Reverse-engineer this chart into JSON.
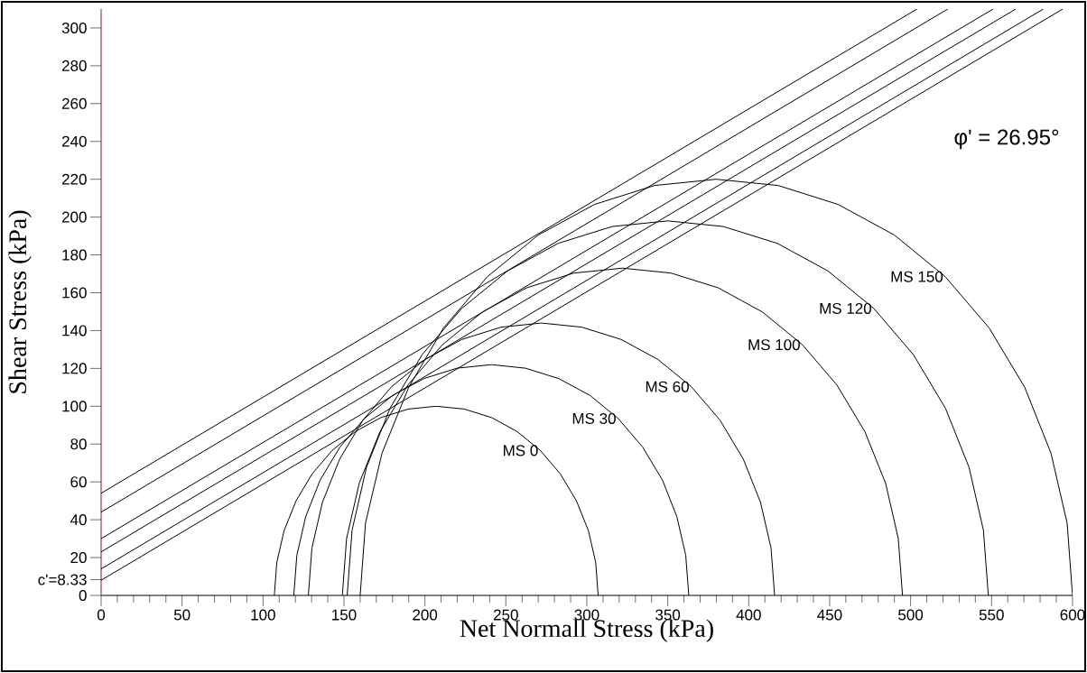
{
  "chart_data": {
    "type": "line",
    "xlabel": "Net Normall Stress (kPa)",
    "ylabel": "Shear Stress (kPa)",
    "annotations": [
      "φ' = 26.95°"
    ],
    "xlim": [
      0,
      600
    ],
    "ylim": [
      0,
      310
    ],
    "xticks": [
      0,
      50,
      100,
      150,
      200,
      250,
      300,
      350,
      400,
      450,
      500,
      550,
      600
    ],
    "yticks": [
      0,
      {
        "value": 8.33,
        "label": "c'=8.33"
      },
      20,
      40,
      60,
      80,
      100,
      120,
      140,
      160,
      180,
      200,
      220,
      240,
      260,
      280,
      300
    ],
    "series": [
      {
        "name": "MS 0",
        "color": "#000000",
        "x": [
          307,
          305.5,
          301,
          293.6,
          283.6,
          271.3,
          257,
          241.2,
          224.4,
          207,
          189.6,
          172.8,
          157,
          142.7,
          130.4,
          120.4,
          113,
          108.5,
          107
        ],
        "values": [
          0,
          17.4,
          34.2,
          50,
          64.3,
          76.6,
          86.6,
          94,
          98.5,
          100,
          98.5,
          94,
          86.6,
          76.6,
          64.3,
          50,
          34.2,
          17.4,
          0
        ]
      },
      {
        "name": "MS 30",
        "color": "#000000",
        "x": [
          363,
          361.1,
          355.6,
          346.7,
          334.5,
          319.4,
          302,
          282.7,
          262.2,
          241,
          219.8,
          199.3,
          180,
          162.6,
          147.5,
          135.3,
          126.4,
          120.9,
          119
        ],
        "values": [
          0,
          21.2,
          41.7,
          61,
          78.4,
          93.5,
          105.7,
          114.6,
          120.1,
          122,
          120.1,
          114.6,
          105.7,
          93.5,
          78.4,
          61,
          41.7,
          21.2,
          0
        ]
      },
      {
        "name": "MS 60",
        "color": "#000000",
        "x": [
          416,
          413.8,
          407.3,
          396.7,
          382.3,
          364.6,
          344,
          321.2,
          297,
          272,
          247,
          222.8,
          200,
          179.4,
          161.7,
          147.3,
          136.7,
          130.2,
          128
        ],
        "values": [
          0,
          25,
          49.2,
          72,
          92.6,
          110.3,
          124.7,
          135.3,
          141.8,
          144,
          141.8,
          135.3,
          124.7,
          110.3,
          92.6,
          72,
          49.2,
          25,
          0
        ]
      },
      {
        "name": "MS 100",
        "color": "#000000",
        "x": [
          495,
          492.4,
          484.6,
          471.8,
          454.5,
          433.2,
          408.5,
          381.2,
          352,
          322,
          292,
          262.8,
          235.5,
          210.8,
          189.5,
          172.2,
          159.4,
          151.6,
          149
        ],
        "values": [
          0,
          30,
          59.2,
          86.5,
          111.2,
          132.5,
          149.8,
          162.6,
          170.4,
          173,
          170.4,
          162.6,
          149.8,
          132.5,
          111.2,
          86.5,
          59.2,
          30,
          0
        ]
      },
      {
        "name": "MS 120",
        "color": "#000000",
        "x": [
          548,
          545,
          536.1,
          521.5,
          501.7,
          477.3,
          449,
          417.7,
          384.4,
          350,
          315.6,
          282.3,
          251,
          222.7,
          198.3,
          178.5,
          163.9,
          155,
          152
        ],
        "values": [
          0,
          34.4,
          67.7,
          99,
          127.3,
          151.7,
          171.5,
          186.1,
          195,
          198,
          195,
          186.1,
          171.5,
          151.7,
          127.3,
          99,
          67.7,
          34.4,
          0
        ]
      },
      {
        "name": "MS 150",
        "color": "#000000",
        "x": [
          600,
          596.7,
          586.7,
          570.5,
          548.5,
          521.4,
          490,
          455.2,
          418.2,
          380,
          341.8,
          304.8,
          270,
          238.6,
          211.5,
          190,
          173.5,
          163.3,
          160
        ],
        "values": [
          0,
          38.2,
          75.2,
          110,
          141.4,
          168.5,
          190.5,
          206.7,
          216.7,
          220,
          216.7,
          206.7,
          190.5,
          168.5,
          141.4,
          110,
          75.2,
          38.2,
          0
        ]
      },
      {
        "color": "#000000",
        "x": [
          0,
          594
        ],
        "values": [
          8,
          310
        ]
      },
      {
        "color": "#000000",
        "x": [
          0,
          582
        ],
        "values": [
          14,
          310
        ]
      },
      {
        "color": "#000000",
        "x": [
          0,
          565
        ],
        "values": [
          23,
          310
        ]
      },
      {
        "color": "#000000",
        "x": [
          0,
          551
        ],
        "values": [
          30,
          310
        ]
      },
      {
        "color": "#000000",
        "x": [
          0,
          523
        ],
        "values": [
          44,
          310
        ]
      },
      {
        "color": "#000000",
        "x": [
          0,
          504
        ],
        "values": [
          54,
          310
        ]
      }
    ]
  }
}
